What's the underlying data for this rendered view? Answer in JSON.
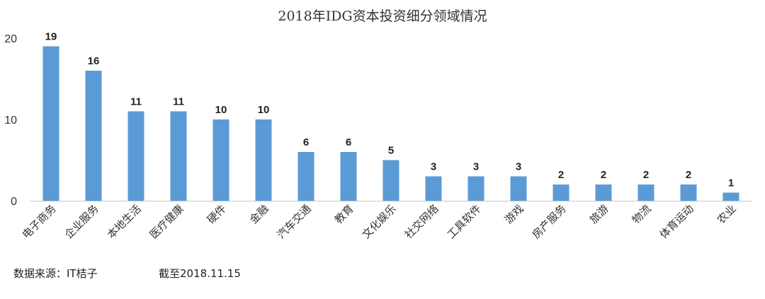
{
  "chart_data": {
    "type": "bar",
    "title": "2018年IDG资本投资细分领域情况",
    "categories": [
      "电子商务",
      "企业服务",
      "本地生活",
      "医疗健康",
      "硬件",
      "金融",
      "汽车交通",
      "教育",
      "文化娱乐",
      "社交网络",
      "工具软件",
      "游戏",
      "房产服务",
      "旅游",
      "物流",
      "体育运动",
      "农业"
    ],
    "values": [
      19,
      16,
      11,
      11,
      10,
      10,
      6,
      6,
      5,
      3,
      3,
      3,
      2,
      2,
      2,
      2,
      1
    ],
    "ylim": [
      0,
      20
    ],
    "yticks": [
      0,
      10,
      20
    ],
    "grid": false,
    "legend": "none",
    "bar_color": "#5B9BD5"
  },
  "footer": {
    "source": "数据来源：IT桔子",
    "date": "截至2018.11.15"
  }
}
